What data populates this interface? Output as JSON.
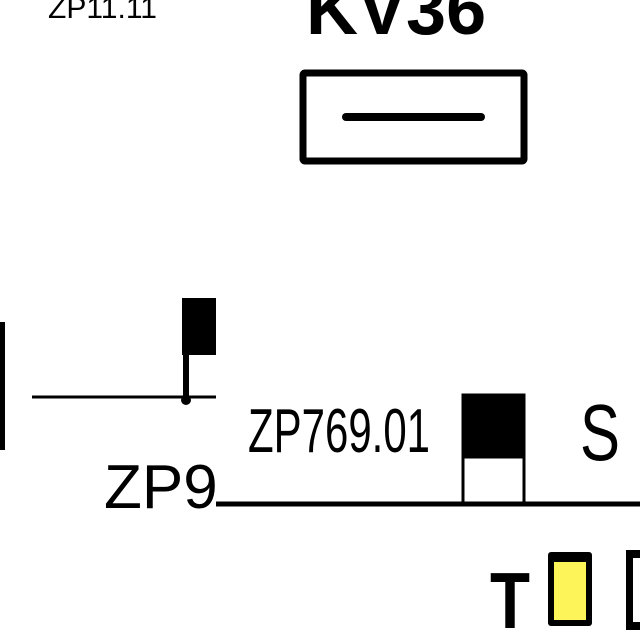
{
  "diagram": {
    "labels": {
      "top_left_label": "ZP11.11",
      "top_center_label": "KV36",
      "left_bottom_label": "ZP9",
      "middle_label": "ZP769.01",
      "signal_s": "S",
      "signal_t": "T"
    },
    "colors": {
      "line": "#000000",
      "background": "#ffffff",
      "yellow_indicator": "#fdf45a"
    },
    "symbols": {
      "relay_box": "KV36 relay symbol (rectangle with inner bar)",
      "left_signal_head": "black flag signal on post",
      "middle_signal_head": "black-over-white signal head",
      "yellow_light": "yellow lamp indicator",
      "right_edge_box": "partially visible box"
    }
  }
}
